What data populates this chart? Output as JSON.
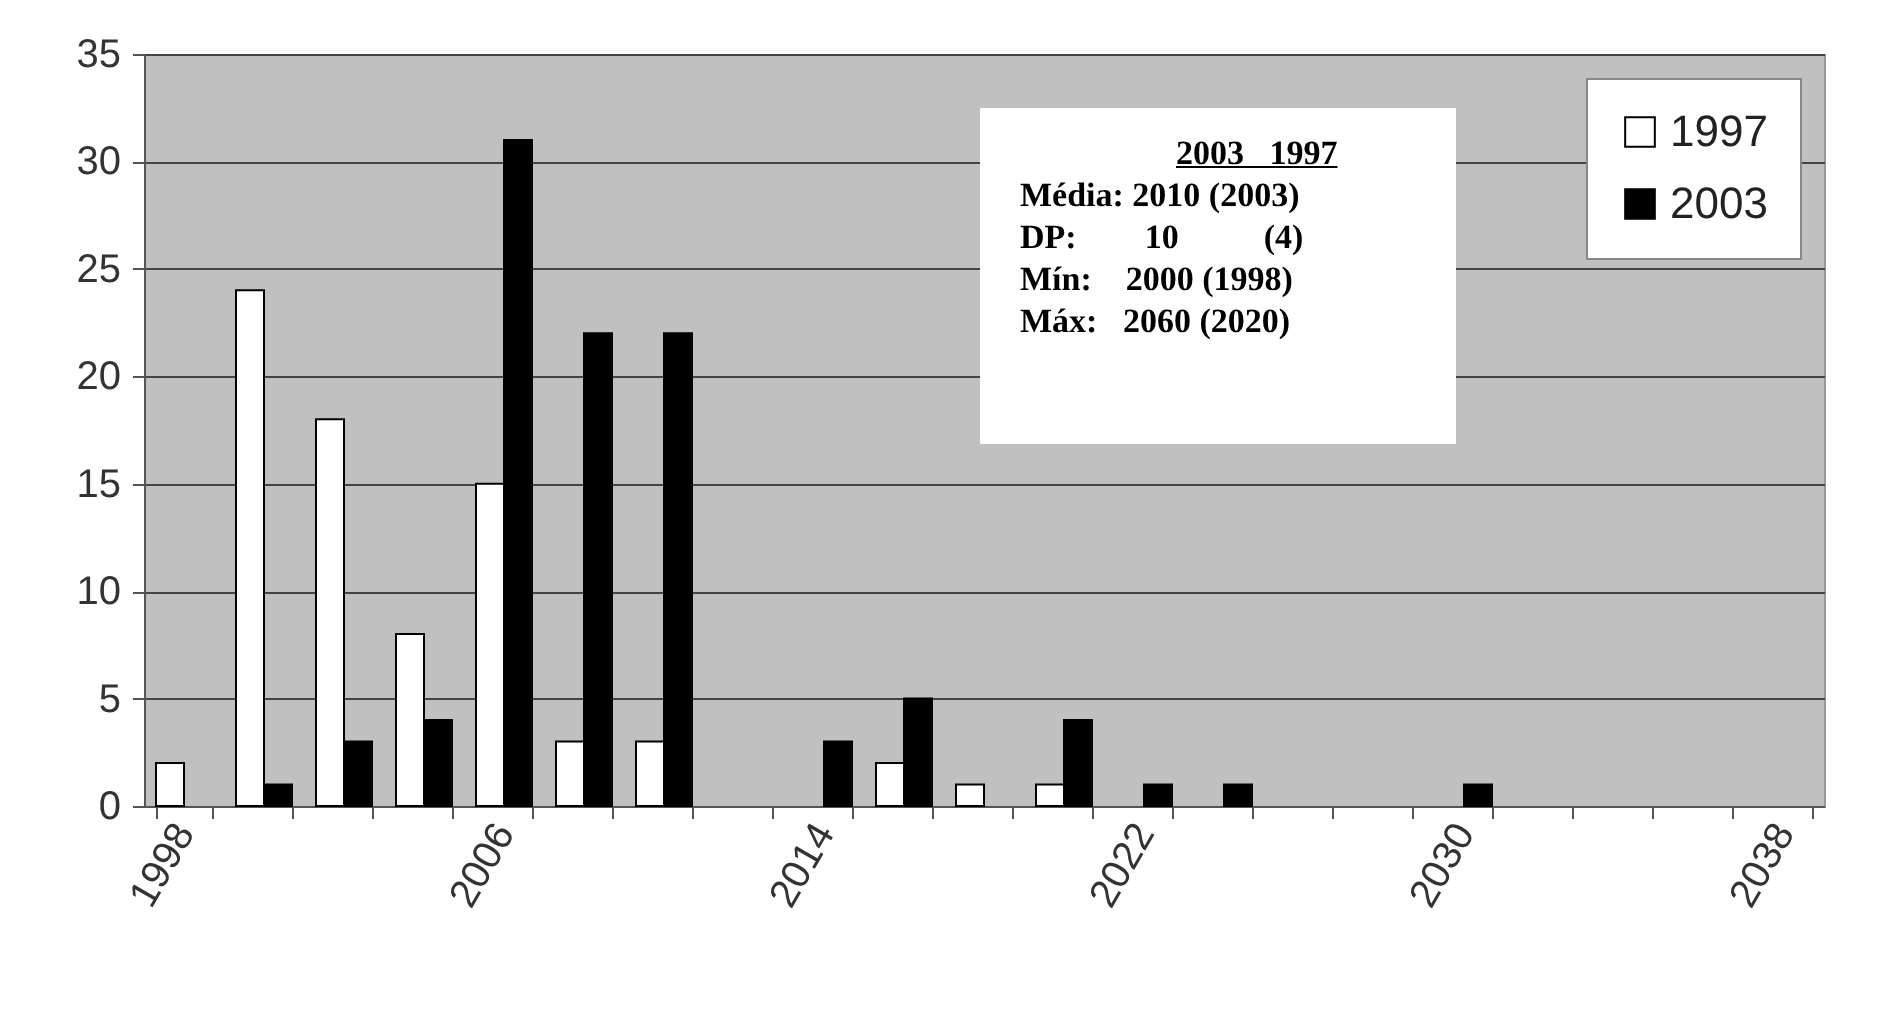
{
  "chart_data": {
    "type": "bar",
    "categories": [
      "1998",
      null,
      null,
      null,
      "2006",
      null,
      null,
      null,
      "2014",
      null,
      null,
      null,
      "2022",
      null,
      null,
      null,
      "2030",
      null,
      null,
      null,
      "2038"
    ],
    "series": [
      {
        "name": "1997",
        "color": "#ffffff",
        "values": [
          2,
          24,
          18,
          8,
          15,
          3,
          3,
          0,
          0,
          2,
          1,
          1,
          0,
          0,
          0,
          0,
          0,
          0,
          0,
          0,
          0
        ]
      },
      {
        "name": "2003",
        "color": "#000000",
        "values": [
          0,
          1,
          3,
          4,
          31,
          22,
          22,
          0,
          3,
          5,
          0,
          4,
          1,
          1,
          0,
          0,
          1,
          0,
          0,
          0,
          0
        ]
      }
    ],
    "ylim": [
      0,
      35
    ],
    "yticks": [
      0,
      5,
      10,
      15,
      20,
      25,
      30,
      35
    ],
    "grid": "y",
    "legend": "top right",
    "annotations": [
      "2003   1997",
      "Média: 2010 (2003)",
      "DP:        10          (4)",
      "Mín:    2000 (1998)",
      "Máx:   2060 (2020)"
    ]
  }
}
